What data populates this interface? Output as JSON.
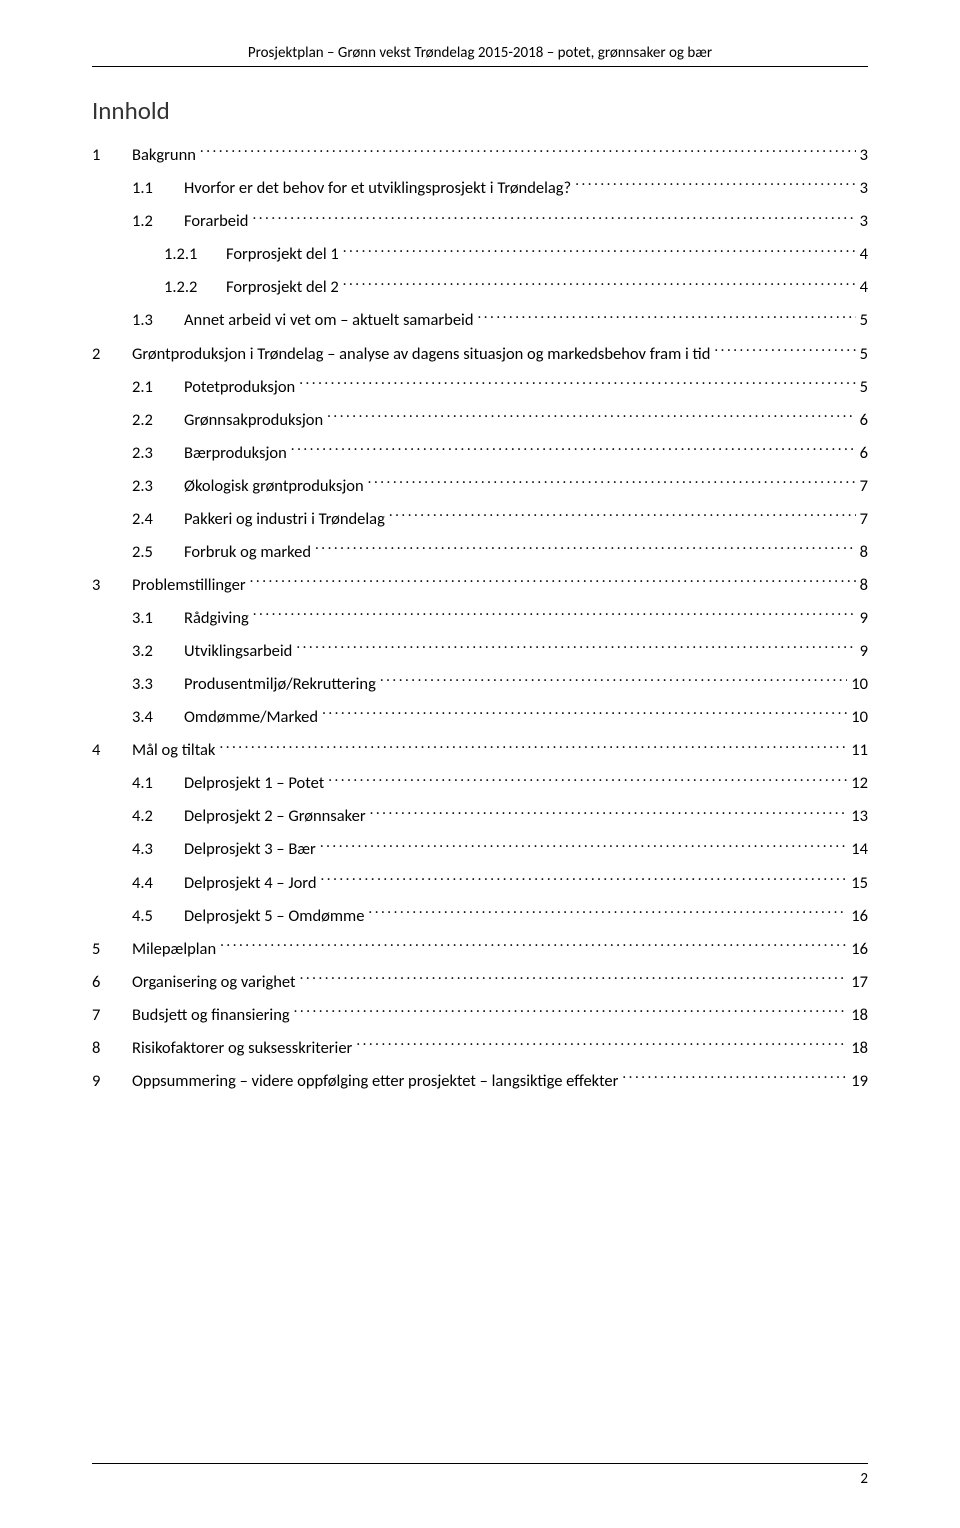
{
  "header": "Prosjektplan – Grønn vekst Trøndelag 2015-2018 – potet, grønnsaker og bær",
  "title": "Innhold",
  "page_number": "2",
  "colors": {
    "text": "#000000",
    "bg": "#ffffff",
    "rule": "#000000"
  },
  "fonts": {
    "body_size": 16.5,
    "title_size": 25,
    "header_size": 15
  },
  "toc": [
    {
      "level": 1,
      "num": "1",
      "label": "Bakgrunn",
      "page": "3"
    },
    {
      "level": 2,
      "num": "1.1",
      "label": "Hvorfor er det behov for et utviklingsprosjekt i Trøndelag?",
      "page": "3"
    },
    {
      "level": 2,
      "num": "1.2",
      "label": "Forarbeid",
      "page": "3"
    },
    {
      "level": 3,
      "num": "1.2.1",
      "label": "Forprosjekt del 1",
      "page": "4"
    },
    {
      "level": 3,
      "num": "1.2.2",
      "label": "Forprosjekt del 2",
      "page": "4"
    },
    {
      "level": 2,
      "num": "1.3",
      "label": "Annet arbeid vi vet om – aktuelt samarbeid",
      "page": "5"
    },
    {
      "level": 1,
      "num": "2",
      "label": "Grøntproduksjon i Trøndelag – analyse av dagens situasjon og markedsbehov fram i tid",
      "page": "5"
    },
    {
      "level": 2,
      "num": "2.1",
      "label": "Potetproduksjon",
      "page": "5"
    },
    {
      "level": 2,
      "num": "2.2",
      "label": "Grønnsakproduksjon",
      "page": "6"
    },
    {
      "level": 2,
      "num": "2.3",
      "label": "Bærproduksjon",
      "page": "6"
    },
    {
      "level": 2,
      "num": "2.3",
      "label": "Økologisk grøntproduksjon",
      "page": "7"
    },
    {
      "level": 2,
      "num": "2.4",
      "label": "Pakkeri og industri i Trøndelag",
      "page": "7"
    },
    {
      "level": 2,
      "num": "2.5",
      "label": "Forbruk og marked",
      "page": "8"
    },
    {
      "level": 1,
      "num": "3",
      "label": "Problemstillinger",
      "page": "8"
    },
    {
      "level": 2,
      "num": "3.1",
      "label": "Rådgiving",
      "page": "9"
    },
    {
      "level": 2,
      "num": "3.2",
      "label": "Utviklingsarbeid",
      "page": "9"
    },
    {
      "level": 2,
      "num": "3.3",
      "label": "Produsentmiljø/Rekruttering",
      "page": "10"
    },
    {
      "level": 2,
      "num": "3.4",
      "label": "Omdømme/Marked",
      "page": "10"
    },
    {
      "level": 1,
      "num": "4",
      "label": "Mål og tiltak",
      "page": "11"
    },
    {
      "level": 2,
      "num": "4.1",
      "label": "Delprosjekt 1 – Potet",
      "page": "12"
    },
    {
      "level": 2,
      "num": "4.2",
      "label": "Delprosjekt 2 – Grønnsaker",
      "page": "13"
    },
    {
      "level": 2,
      "num": "4.3",
      "label": "Delprosjekt 3 – Bær",
      "page": "14"
    },
    {
      "level": 2,
      "num": "4.4",
      "label": "Delprosjekt 4 – Jord",
      "page": "15"
    },
    {
      "level": 2,
      "num": "4.5",
      "label": "Delprosjekt 5 – Omdømme",
      "page": "16"
    },
    {
      "level": 1,
      "num": "5",
      "label": "Milepælplan",
      "page": "16"
    },
    {
      "level": 1,
      "num": "6",
      "label": "Organisering og varighet",
      "page": "17"
    },
    {
      "level": 1,
      "num": "7",
      "label": "Budsjett og finansiering",
      "page": "18"
    },
    {
      "level": 1,
      "num": "8",
      "label": "Risikofaktorer og suksesskriterier",
      "page": "18"
    },
    {
      "level": 1,
      "num": "9",
      "label": "Oppsummering – videre oppfølging etter prosjektet – langsiktige effekter",
      "page": "19"
    }
  ]
}
